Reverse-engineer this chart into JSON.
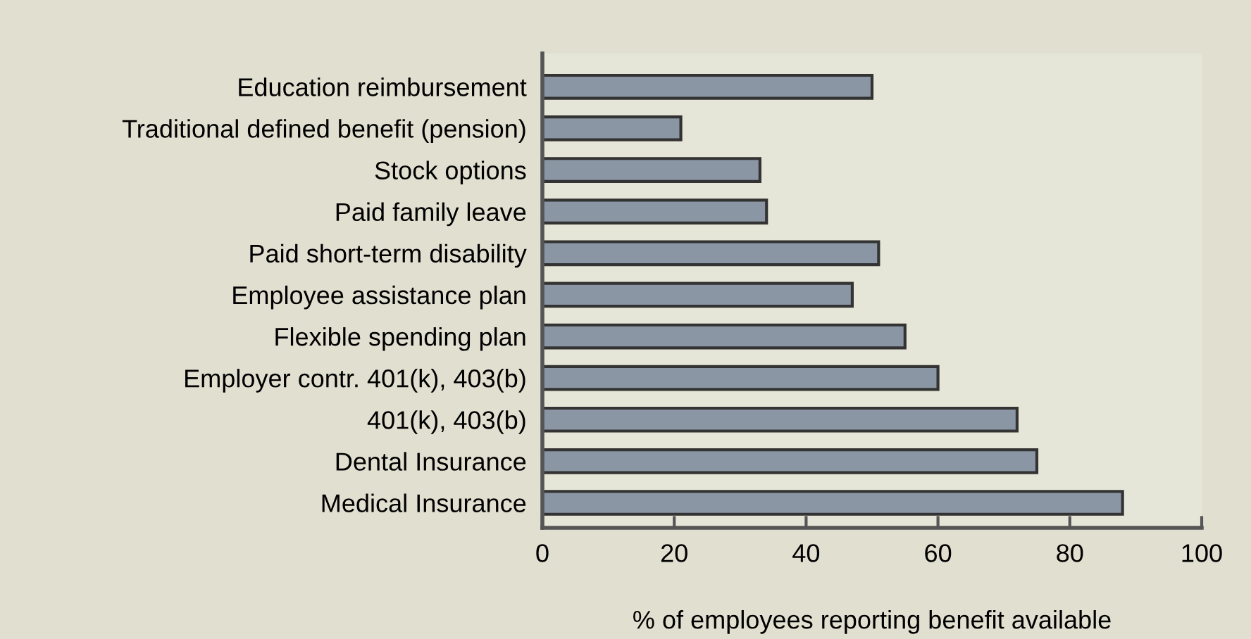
{
  "chart_data": {
    "type": "bar",
    "orientation": "horizontal",
    "xlabel": "% of employees reporting benefit available",
    "categories": [
      "Education reimbursement",
      "Traditional defined benefit (pension)",
      "Stock options",
      "Paid family leave",
      "Paid short-term disability",
      "Employee assistance plan",
      "Flexible spending plan",
      "Employer contr. 401(k), 403(b)",
      "401(k), 403(b)",
      "Dental Insurance",
      "Medical Insurance"
    ],
    "values": [
      50,
      21,
      33,
      34,
      51,
      47,
      55,
      60,
      72,
      75,
      88
    ],
    "color": "#8a96a3",
    "xlim": [
      0,
      100
    ],
    "xticks": [
      0,
      20,
      40,
      60,
      80,
      100
    ],
    "grid": false
  }
}
